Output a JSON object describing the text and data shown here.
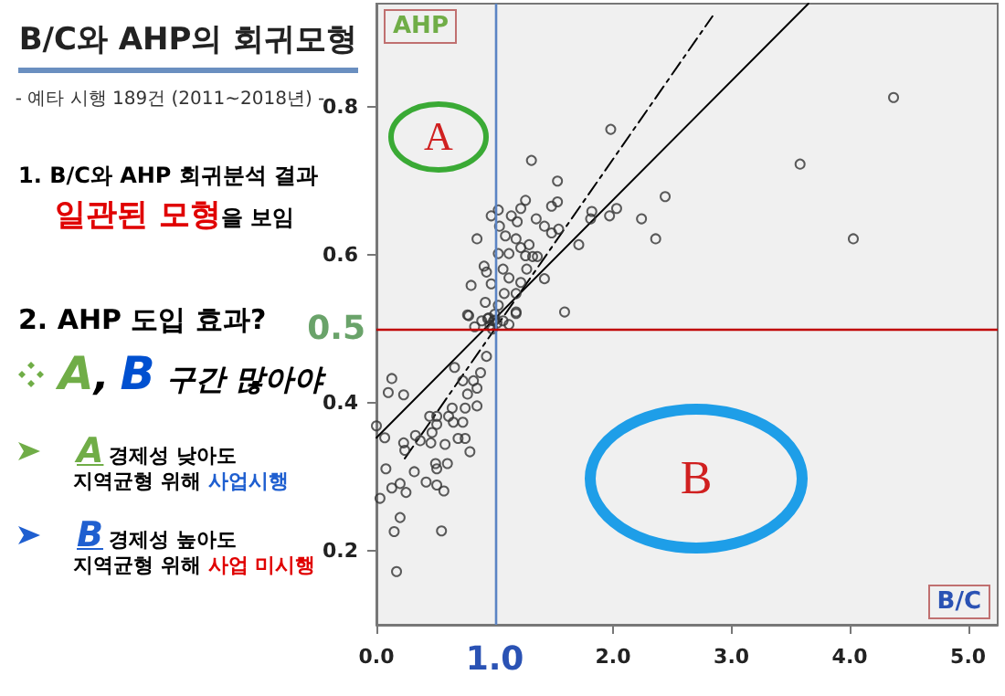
{
  "chart_data": {
    "type": "scatter",
    "title": "B/C와 AHP의 회귀모형",
    "subtitle": "- 예타 시행 189건 (2011~2018년) -",
    "xlabel": "B/C",
    "ylabel": "AHP",
    "xlim": [
      0,
      5.25
    ],
    "ylim": [
      0.1,
      0.94
    ],
    "xticks": [
      {
        "value": 0,
        "label": "0.0"
      },
      {
        "value": 2,
        "label": "2.0"
      },
      {
        "value": 3,
        "label": "3.0"
      },
      {
        "value": 4,
        "label": "4.0"
      },
      {
        "value": 5,
        "label": "5.0"
      }
    ],
    "yticks": [
      0.2,
      0.4,
      0.6,
      0.8
    ],
    "grid": false,
    "series": [
      {
        "marker": "circle",
        "color": "#333333",
        "x": [
          4.37,
          1.98,
          1.31,
          3.58,
          1.53,
          2.44,
          1.53,
          1.48,
          1.26,
          1.22,
          1.03,
          0.97,
          1.14,
          1.19,
          1.35,
          1.82,
          1.81,
          1.97,
          2.03,
          2.24,
          1.42,
          1.48,
          1.54,
          1.04,
          1.09,
          0.85,
          4.03,
          2.36,
          1.71,
          1.18,
          1.22,
          1.29,
          1.32,
          1.36,
          1.26,
          1.12,
          1.03,
          1.07,
          0.91,
          0.93,
          1.27,
          1.12,
          0.8,
          0.97,
          1.22,
          1.42,
          1.08,
          1.18,
          1.59,
          0.92,
          1.03,
          1.18,
          0.78,
          0.89,
          0.94,
          0.99,
          1.07,
          0.96,
          1.12,
          0.83,
          0.77,
          1.18,
          0.95,
          1.0,
          1.02,
          0.98,
          1.0,
          0.93,
          0.88,
          0.82,
          0.73,
          0.66,
          0.85,
          0.77,
          0.85,
          0.75,
          0.64,
          0.61,
          0.51,
          0.45,
          0.65,
          0.73,
          0.51,
          0.47,
          0.33,
          0.37,
          0.46,
          0.58,
          0.69,
          0.75,
          0.79,
          0.23,
          0.24,
          0.07,
          0.0,
          0.13,
          0.1,
          0.23,
          0.08,
          0.32,
          0.5,
          0.51,
          0.6,
          0.42,
          0.51,
          0.57,
          0.13,
          0.2,
          0.25,
          0.03,
          0.2,
          0.15,
          0.55,
          0.17
        ],
        "values": [
          0.813,
          0.77,
          0.728,
          0.723,
          0.7,
          0.679,
          0.672,
          0.666,
          0.674,
          0.663,
          0.661,
          0.653,
          0.653,
          0.645,
          0.649,
          0.659,
          0.649,
          0.653,
          0.663,
          0.649,
          0.639,
          0.63,
          0.635,
          0.639,
          0.626,
          0.622,
          0.622,
          0.622,
          0.614,
          0.622,
          0.61,
          0.614,
          0.598,
          0.598,
          0.599,
          0.602,
          0.602,
          0.581,
          0.585,
          0.577,
          0.581,
          0.569,
          0.559,
          0.561,
          0.563,
          0.568,
          0.548,
          0.548,
          0.523,
          0.536,
          0.532,
          0.523,
          0.518,
          0.511,
          0.514,
          0.511,
          0.511,
          0.505,
          0.506,
          0.503,
          0.519,
          0.521,
          0.515,
          0.52,
          0.508,
          0.5,
          0.512,
          0.463,
          0.441,
          0.43,
          0.43,
          0.448,
          0.42,
          0.412,
          0.396,
          0.393,
          0.393,
          0.382,
          0.382,
          0.382,
          0.374,
          0.374,
          0.371,
          0.36,
          0.356,
          0.349,
          0.346,
          0.344,
          0.352,
          0.352,
          0.334,
          0.346,
          0.336,
          0.353,
          0.369,
          0.433,
          0.414,
          0.411,
          0.311,
          0.307,
          0.318,
          0.311,
          0.318,
          0.293,
          0.289,
          0.281,
          0.285,
          0.291,
          0.279,
          0.271,
          0.245,
          0.226,
          0.227,
          0.172
        ]
      },
      {
        "type": "line",
        "marker": "none",
        "line_style": "solid",
        "color": "#000000",
        "x": [
          0,
          3.65
        ],
        "values": [
          0.353,
          0.94
        ]
      },
      {
        "type": "line",
        "marker": "none",
        "line_style": "dashed",
        "color": "#000000",
        "x": [
          0.24,
          2.84
        ],
        "values": [
          0.325,
          0.923
        ]
      }
    ],
    "ref_lines": [
      {
        "axis": "x",
        "value": 1,
        "label": "1.0",
        "color": "#5b84c4"
      },
      {
        "axis": "y",
        "value": 0.5,
        "label": "0.5",
        "color": "#c00000"
      }
    ],
    "annotations": [
      "A",
      "B",
      "1. B/C와 AHP 회귀분석 결과",
      "일관된 모형",
      "을 보임",
      "2. AHP 도입 효과?",
      "A",
      ",",
      "B",
      "구간 많아야",
      "A",
      "경제성 낮아도",
      "지역균형 위해",
      "사업시행",
      "B",
      "경제성 높아도",
      "지역균형 위해",
      "사업 미시행"
    ]
  }
}
